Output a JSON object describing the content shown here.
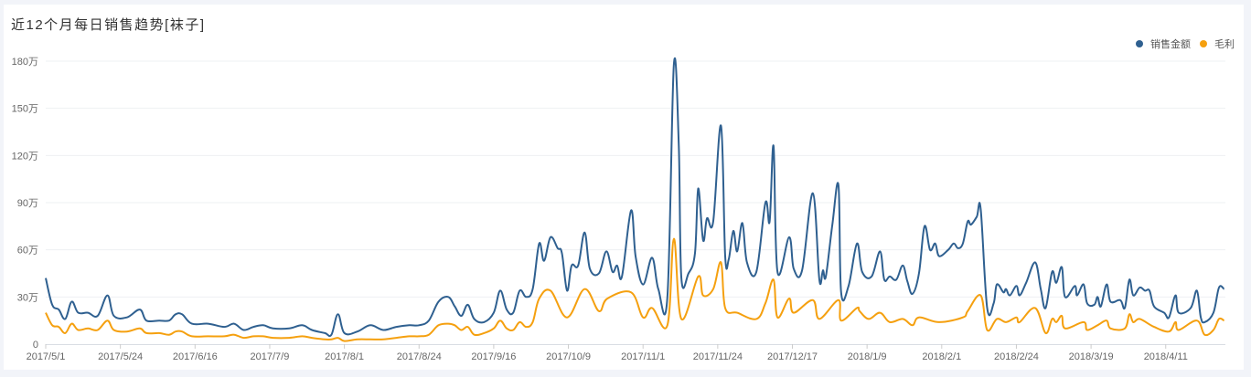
{
  "title": "近12个月每日销售趋势[袜子]",
  "chart_data": {
    "type": "line",
    "title": "近12个月每日销售趋势[袜子]",
    "x_unit": "days since 2017/5/1",
    "x_range": [
      0,
      364
    ],
    "xlabel": "",
    "ylabel": "",
    "ylim": [
      0,
      180
    ],
    "y_ticks": [
      0,
      30,
      60,
      90,
      120,
      150,
      180
    ],
    "y_tick_labels": [
      "0",
      "30万",
      "60万",
      "90万",
      "120万",
      "150万",
      "180万"
    ],
    "x_tick_days": [
      0,
      23,
      46,
      69,
      92,
      115,
      138,
      161,
      184,
      207,
      230,
      253,
      276,
      299,
      322,
      345
    ],
    "x_tick_labels": [
      "2017/5/1",
      "2017/5/24",
      "2017/6/16",
      "2017/7/9",
      "2017/8/1",
      "2017/8/24",
      "2017/9/16",
      "2017/10/9",
      "2017/11/1",
      "2017/11/24",
      "2017/12/17",
      "2018/1/9",
      "2018/2/1",
      "2018/2/24",
      "2018/3/19",
      "2018/4/11"
    ],
    "grid": true,
    "legend_position": "top-right",
    "series": [
      {
        "name": "销售金额",
        "color": "#2f6090",
        "points": [
          [
            0,
            42
          ],
          [
            2,
            25
          ],
          [
            4,
            22
          ],
          [
            6,
            16
          ],
          [
            8,
            27
          ],
          [
            10,
            20
          ],
          [
            13,
            20
          ],
          [
            16,
            18
          ],
          [
            19,
            31
          ],
          [
            21,
            18
          ],
          [
            25,
            17
          ],
          [
            29,
            22
          ],
          [
            31,
            15
          ],
          [
            35,
            15
          ],
          [
            38,
            15
          ],
          [
            40,
            19
          ],
          [
            42,
            19
          ],
          [
            45,
            13
          ],
          [
            50,
            13
          ],
          [
            55,
            11
          ],
          [
            58,
            13
          ],
          [
            61,
            9
          ],
          [
            64,
            11
          ],
          [
            67,
            12
          ],
          [
            70,
            10
          ],
          [
            75,
            10
          ],
          [
            79,
            12
          ],
          [
            82,
            9
          ],
          [
            86,
            7
          ],
          [
            88,
            6
          ],
          [
            90,
            19
          ],
          [
            92,
            7
          ],
          [
            96,
            8
          ],
          [
            100,
            12
          ],
          [
            104,
            9
          ],
          [
            108,
            11
          ],
          [
            112,
            12
          ],
          [
            115,
            12
          ],
          [
            118,
            15
          ],
          [
            121,
            27
          ],
          [
            124,
            30
          ],
          [
            126,
            24
          ],
          [
            128,
            18
          ],
          [
            130,
            25
          ],
          [
            132,
            16
          ],
          [
            135,
            14
          ],
          [
            138,
            20
          ],
          [
            140,
            34
          ],
          [
            142,
            22
          ],
          [
            144,
            20
          ],
          [
            146,
            34
          ],
          [
            148,
            30
          ],
          [
            150,
            35
          ],
          [
            152,
            64
          ],
          [
            153.5,
            53
          ],
          [
            155.5,
            68
          ],
          [
            157.7,
            61
          ],
          [
            159,
            58
          ],
          [
            160.6,
            34
          ],
          [
            162,
            50
          ],
          [
            164,
            50
          ],
          [
            166,
            71
          ],
          [
            167.6,
            48
          ],
          [
            170.4,
            45
          ],
          [
            172.7,
            59
          ],
          [
            174.6,
            46
          ],
          [
            176,
            50
          ],
          [
            177.5,
            43
          ],
          [
            180.3,
            85
          ],
          [
            181.7,
            56
          ],
          [
            184,
            38
          ],
          [
            186.8,
            55
          ],
          [
            188.7,
            35
          ],
          [
            191.5,
            30
          ],
          [
            193.5,
            178
          ],
          [
            195,
            126
          ],
          [
            195.8,
            42
          ],
          [
            198,
            45
          ],
          [
            200,
            58
          ],
          [
            201,
            99
          ],
          [
            202.5,
            66
          ],
          [
            203.7,
            80
          ],
          [
            205.6,
            78
          ],
          [
            208,
            139
          ],
          [
            209.3,
            56
          ],
          [
            210.4,
            54
          ],
          [
            211.8,
            72
          ],
          [
            213,
            59
          ],
          [
            214.6,
            77
          ],
          [
            216,
            52
          ],
          [
            218.9,
            46
          ],
          [
            221.7,
            90
          ],
          [
            223,
            78
          ],
          [
            224.2,
            126
          ],
          [
            225.4,
            46
          ],
          [
            229,
            68
          ],
          [
            230.4,
            48
          ],
          [
            233,
            47
          ],
          [
            236.3,
            96
          ],
          [
            238.3,
            41
          ],
          [
            239.4,
            47
          ],
          [
            240.3,
            43
          ],
          [
            242.3,
            76
          ],
          [
            244.2,
            101
          ],
          [
            245,
            33
          ],
          [
            247.3,
            37
          ],
          [
            249.9,
            64
          ],
          [
            251.5,
            46
          ],
          [
            254.4,
            43
          ],
          [
            257,
            59
          ],
          [
            258.3,
            41
          ],
          [
            260,
            43
          ],
          [
            262,
            41
          ],
          [
            264,
            50
          ],
          [
            265.4,
            40
          ],
          [
            267,
            32
          ],
          [
            269,
            45
          ],
          [
            270.7,
            75
          ],
          [
            272.4,
            60
          ],
          [
            274,
            64
          ],
          [
            275.2,
            56
          ],
          [
            278,
            60
          ],
          [
            279.7,
            64
          ],
          [
            281,
            61
          ],
          [
            282.5,
            64
          ],
          [
            284,
            78
          ],
          [
            285,
            76
          ],
          [
            286.8,
            81
          ],
          [
            288,
            86
          ],
          [
            290,
            23
          ],
          [
            292,
            26
          ],
          [
            293,
            38
          ],
          [
            295,
            33
          ],
          [
            295.8,
            35
          ],
          [
            297,
            31
          ],
          [
            299,
            37
          ],
          [
            300,
            31
          ],
          [
            302,
            39
          ],
          [
            304.8,
            52
          ],
          [
            306.5,
            35
          ],
          [
            308,
            23
          ],
          [
            310,
            46
          ],
          [
            311.3,
            39
          ],
          [
            313,
            49
          ],
          [
            314,
            30
          ],
          [
            317,
            37
          ],
          [
            317.7,
            31
          ],
          [
            319.7,
            38
          ],
          [
            320.8,
            26
          ],
          [
            323,
            25
          ],
          [
            324,
            30
          ],
          [
            325,
            24
          ],
          [
            326.8,
            38
          ],
          [
            328,
            27
          ],
          [
            331,
            28
          ],
          [
            332.4,
            23
          ],
          [
            333.8,
            41
          ],
          [
            335,
            31
          ],
          [
            337,
            36
          ],
          [
            338.6,
            34
          ],
          [
            340,
            34
          ],
          [
            341.4,
            24
          ],
          [
            344.5,
            20
          ],
          [
            346,
            17
          ],
          [
            348,
            31
          ],
          [
            349,
            20
          ],
          [
            352.7,
            23
          ],
          [
            354.6,
            34
          ],
          [
            355.8,
            17
          ],
          [
            357,
            14
          ],
          [
            359.7,
            20
          ],
          [
            361.4,
            36
          ],
          [
            363,
            35
          ]
        ]
      },
      {
        "name": "毛利",
        "color": "#f5a00f",
        "points": [
          [
            0,
            20
          ],
          [
            2,
            12
          ],
          [
            4,
            11
          ],
          [
            6,
            7
          ],
          [
            8,
            13
          ],
          [
            10,
            9
          ],
          [
            13,
            10
          ],
          [
            16,
            9
          ],
          [
            19,
            15
          ],
          [
            21,
            9
          ],
          [
            25,
            8
          ],
          [
            29,
            10
          ],
          [
            31,
            7
          ],
          [
            35,
            7
          ],
          [
            38,
            6
          ],
          [
            40,
            8
          ],
          [
            42,
            8
          ],
          [
            45,
            5
          ],
          [
            50,
            5
          ],
          [
            55,
            5
          ],
          [
            58,
            6
          ],
          [
            61,
            4
          ],
          [
            64,
            5
          ],
          [
            67,
            5
          ],
          [
            70,
            4
          ],
          [
            75,
            4
          ],
          [
            79,
            5
          ],
          [
            82,
            4
          ],
          [
            86,
            3
          ],
          [
            88,
            3
          ],
          [
            90,
            4
          ],
          [
            92,
            2
          ],
          [
            96,
            3
          ],
          [
            100,
            3
          ],
          [
            104,
            3
          ],
          [
            108,
            4
          ],
          [
            112,
            5
          ],
          [
            115,
            5
          ],
          [
            118,
            6
          ],
          [
            121,
            12
          ],
          [
            124,
            13
          ],
          [
            126,
            12
          ],
          [
            128,
            9
          ],
          [
            130,
            11
          ],
          [
            132,
            6
          ],
          [
            135,
            7
          ],
          [
            138,
            10
          ],
          [
            140,
            15
          ],
          [
            142,
            10
          ],
          [
            144,
            9
          ],
          [
            146,
            14
          ],
          [
            148,
            11
          ],
          [
            150,
            14
          ],
          [
            152,
            29
          ],
          [
            155.5,
            34
          ],
          [
            160.6,
            17
          ],
          [
            166,
            35
          ],
          [
            170.4,
            21
          ],
          [
            173,
            29
          ],
          [
            180.3,
            33
          ],
          [
            184,
            17
          ],
          [
            186.8,
            23
          ],
          [
            191.5,
            12
          ],
          [
            193.5,
            67
          ],
          [
            195.8,
            16
          ],
          [
            201,
            43
          ],
          [
            202.5,
            31
          ],
          [
            205.6,
            35
          ],
          [
            208,
            52
          ],
          [
            209.3,
            23
          ],
          [
            213,
            20
          ],
          [
            218.9,
            16
          ],
          [
            221.7,
            26
          ],
          [
            224.2,
            41
          ],
          [
            225.4,
            17
          ],
          [
            229,
            29
          ],
          [
            230.4,
            20
          ],
          [
            236.3,
            28
          ],
          [
            238.3,
            16
          ],
          [
            244.2,
            28
          ],
          [
            245,
            15
          ],
          [
            249.9,
            23
          ],
          [
            250.7,
            21
          ],
          [
            253.5,
            16
          ],
          [
            257,
            20
          ],
          [
            260,
            14
          ],
          [
            264,
            16
          ],
          [
            267,
            12
          ],
          [
            269,
            17
          ],
          [
            275.2,
            14
          ],
          [
            282.5,
            17
          ],
          [
            284,
            21
          ],
          [
            288,
            31
          ],
          [
            290,
            9
          ],
          [
            293,
            16
          ],
          [
            295.8,
            14
          ],
          [
            299,
            17
          ],
          [
            300,
            14
          ],
          [
            304.8,
            23
          ],
          [
            308,
            7
          ],
          [
            310,
            16
          ],
          [
            311.3,
            14
          ],
          [
            313,
            18
          ],
          [
            314,
            10
          ],
          [
            319.7,
            14
          ],
          [
            320.8,
            9
          ],
          [
            324,
            12
          ],
          [
            326.8,
            15
          ],
          [
            328,
            10
          ],
          [
            332.4,
            10
          ],
          [
            333.8,
            19
          ],
          [
            335,
            14
          ],
          [
            337,
            16
          ],
          [
            341.4,
            11
          ],
          [
            346,
            8
          ],
          [
            348,
            14
          ],
          [
            349,
            9
          ],
          [
            354.6,
            15
          ],
          [
            357,
            6
          ],
          [
            359.7,
            9
          ],
          [
            361.4,
            16
          ],
          [
            363,
            15
          ]
        ]
      }
    ]
  }
}
